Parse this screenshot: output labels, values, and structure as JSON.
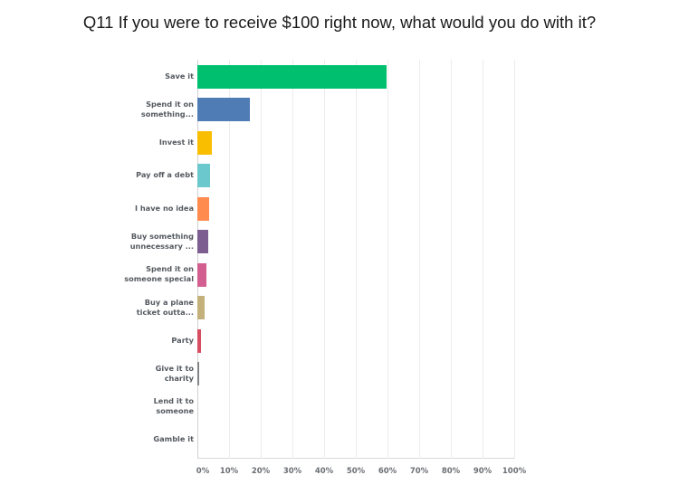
{
  "chart_data": {
    "type": "bar",
    "orientation": "horizontal",
    "title": "Q11 If you were to receive $100 right now, what would you do with it?",
    "xlabel": "",
    "ylabel": "",
    "xlim": [
      0,
      100
    ],
    "grid": true,
    "legend": null,
    "categories": [
      "Save it",
      "Spend it on something...",
      "Invest it",
      "Pay off a debt",
      "I have no idea",
      "Buy something unnecessary ...",
      "Spend it on someone special",
      "Buy a plane ticket outta...",
      "Party",
      "Give it to charity",
      "Lend it to someone",
      "Gamble it"
    ],
    "values": [
      59.8,
      16.6,
      4.6,
      4.1,
      3.7,
      3.5,
      2.9,
      2.4,
      1.1,
      0.5,
      0,
      0
    ],
    "colors": [
      "#00BF6F",
      "#507CB6",
      "#F9BE00",
      "#6BC8CD",
      "#FF8B4F",
      "#7D5E90",
      "#D25F90",
      "#C4B07B",
      "#D74D61",
      "#838486",
      "#B5B5B5",
      "#B5B5B5"
    ],
    "tick_labels": [
      "0%",
      "10%",
      "20%",
      "30%",
      "40%",
      "50%",
      "60%",
      "70%",
      "80%",
      "90%",
      "100%"
    ]
  },
  "labels_display": [
    [
      "Save it"
    ],
    [
      "Spend it on",
      "something..."
    ],
    [
      "Invest it"
    ],
    [
      "Pay off a debt"
    ],
    [
      "I have no idea"
    ],
    [
      "Buy something",
      "unnecessary ..."
    ],
    [
      "Spend it on",
      "someone special"
    ],
    [
      "Buy a plane",
      "ticket outta..."
    ],
    [
      "Party"
    ],
    [
      "Give it to",
      "charity"
    ],
    [
      "Lend it to",
      "someone"
    ],
    [
      "Gamble it"
    ]
  ]
}
